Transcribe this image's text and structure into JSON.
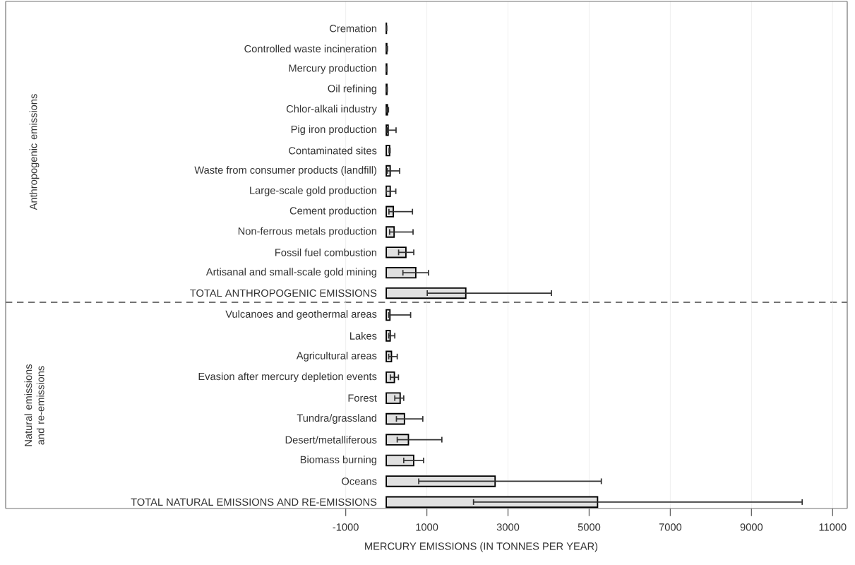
{
  "chart_data": [
    {
      "type": "bar",
      "orientation": "horizontal",
      "ylabel": "Anthropogenic emissions",
      "categories": [
        "Cremation",
        "Controlled waste incineration",
        "Mercury production",
        "Oil refining",
        "Chlor-alkali industry",
        "Pig iron production",
        "Contaminated sites",
        "Waste from consumer products (landfill)",
        "Large-scale gold production",
        "Cement production",
        "Non-ferrous metals production",
        "Fossil fuel combustion",
        "Artisanal and small-scale gold mining",
        "TOTAL ANTHROPOGENIC EMISSIONS"
      ],
      "values": [
        4,
        13,
        12,
        16,
        28,
        46,
        83,
        96,
        97,
        173,
        193,
        484,
        727,
        1960
      ],
      "errors": [
        [
          1,
          11
        ],
        [
          6,
          30
        ],
        [
          7,
          18
        ],
        [
          7,
          26
        ],
        [
          10,
          55
        ],
        [
          21,
          241
        ],
        [
          70,
          95
        ],
        [
          24,
          330
        ],
        [
          1,
          235
        ],
        [
          66,
          646
        ],
        [
          82,
          660
        ],
        [
          304,
          678
        ],
        [
          410,
          1040
        ],
        [
          1010,
          4070
        ]
      ],
      "color": "#e0e0e0",
      "xlim": [
        -9380,
        11360
      ],
      "xticks": [
        -1000,
        1000,
        3000,
        5000,
        7000,
        9000,
        11000
      ],
      "grid": "x",
      "tick_labels": "y"
    },
    {
      "type": "bar",
      "orientation": "horizontal",
      "ylabel": "Natural emissions and re-emissions",
      "xlabel": "MERCURY EMISSIONS (IN TONNES PER YEAR)",
      "categories": [
        "Vulcanoes and geothermal areas",
        "Lakes",
        "Agricultural areas",
        "Evasion after mercury depletion events",
        "Forest",
        "Tundra/grassland",
        "Desert/metalliferous",
        "Biomass burning",
        "Oceans",
        "TOTAL NATURAL EMISSIONS AND RE-EMISSIONS"
      ],
      "values": [
        90,
        96,
        128,
        200,
        342,
        448,
        546,
        675,
        2682,
        5207
      ],
      "errors": [
        [
          60,
          600
        ],
        [
          60,
          210
        ],
        [
          60,
          270
        ],
        [
          100,
          300
        ],
        [
          210,
          430
        ],
        [
          250,
          900
        ],
        [
          270,
          1370
        ],
        [
          430,
          920
        ],
        [
          800,
          5300
        ],
        [
          2150,
          10250
        ]
      ],
      "color": "#e0e0e0",
      "xlim": [
        -9380,
        11360
      ],
      "xticks": [
        -1000,
        1000,
        3000,
        5000,
        7000,
        9000,
        11000
      ],
      "grid": "x"
    }
  ]
}
